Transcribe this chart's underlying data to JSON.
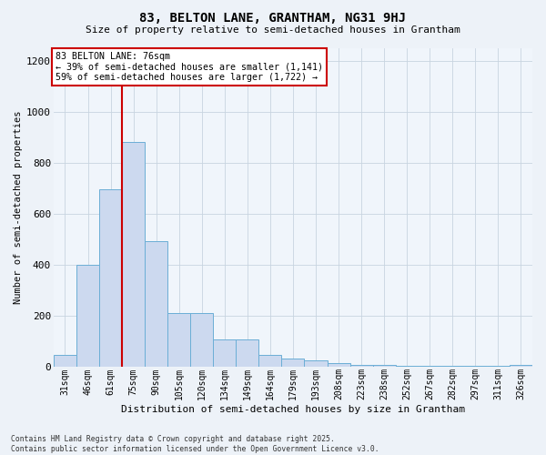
{
  "title1": "83, BELTON LANE, GRANTHAM, NG31 9HJ",
  "title2": "Size of property relative to semi-detached houses in Grantham",
  "xlabel": "Distribution of semi-detached houses by size in Grantham",
  "ylabel": "Number of semi-detached properties",
  "categories": [
    "31sqm",
    "46sqm",
    "61sqm",
    "75sqm",
    "90sqm",
    "105sqm",
    "120sqm",
    "134sqm",
    "149sqm",
    "164sqm",
    "179sqm",
    "193sqm",
    "208sqm",
    "223sqm",
    "238sqm",
    "252sqm",
    "267sqm",
    "282sqm",
    "297sqm",
    "311sqm",
    "326sqm"
  ],
  "values": [
    45,
    400,
    695,
    880,
    490,
    210,
    210,
    105,
    105,
    45,
    30,
    25,
    15,
    8,
    5,
    3,
    3,
    3,
    3,
    2,
    8
  ],
  "bar_color": "#ccd9ef",
  "bar_edge_color": "#6baed6",
  "vline_color": "#cc0000",
  "vline_x": 2.5,
  "annotation_text": "83 BELTON LANE: 76sqm\n← 39% of semi-detached houses are smaller (1,141)\n59% of semi-detached houses are larger (1,722) →",
  "footer_text": "Contains HM Land Registry data © Crown copyright and database right 2025.\nContains public sector information licensed under the Open Government Licence v3.0.",
  "ylim": [
    0,
    1250
  ],
  "yticks": [
    0,
    200,
    400,
    600,
    800,
    1000,
    1200
  ],
  "grid_color": "#c8d4e0",
  "background_color": "#edf2f8",
  "plot_bg_color": "#f0f5fb"
}
